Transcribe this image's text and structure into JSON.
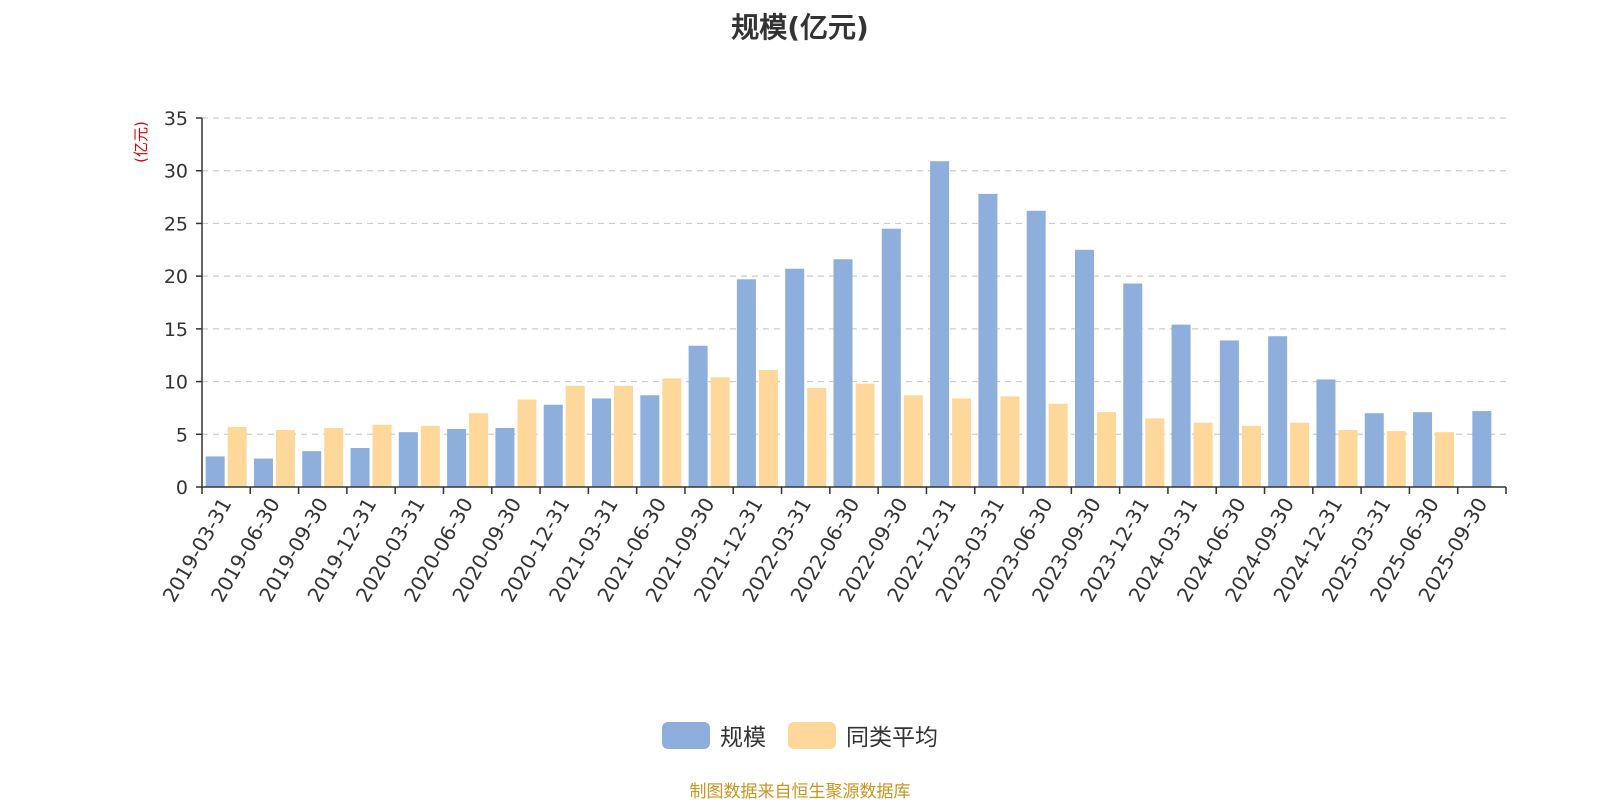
{
  "chart_data": {
    "type": "bar",
    "title": "规模(亿元)",
    "y_unit_label": "(亿元)",
    "ylim": [
      0,
      35
    ],
    "yticks": [
      0,
      5,
      10,
      15,
      20,
      25,
      30,
      35
    ],
    "grid": true,
    "legend_position": "bottom",
    "categories": [
      "2019-03-31",
      "2019-06-30",
      "2019-09-30",
      "2019-12-31",
      "2020-03-31",
      "2020-06-30",
      "2020-09-30",
      "2020-12-31",
      "2021-03-31",
      "2021-06-30",
      "2021-09-30",
      "2021-12-31",
      "2022-03-31",
      "2022-06-30",
      "2022-09-30",
      "2022-12-31",
      "2023-03-31",
      "2023-06-30",
      "2023-09-30",
      "2023-12-31",
      "2024-03-31",
      "2024-06-30",
      "2024-09-30",
      "2024-12-31",
      "2025-03-31",
      "2025-06-30",
      "2025-09-30"
    ],
    "series": [
      {
        "name": "规模",
        "color": "#8eaedc",
        "values": [
          2.9,
          2.7,
          3.4,
          3.7,
          5.2,
          5.5,
          5.6,
          7.8,
          8.4,
          8.7,
          13.4,
          19.7,
          20.7,
          21.6,
          24.5,
          30.9,
          27.8,
          26.2,
          22.5,
          19.3,
          15.4,
          13.9,
          14.3,
          10.2,
          7.0,
          7.1,
          7.2
        ]
      },
      {
        "name": "同类平均",
        "color": "#fdd89a",
        "values": [
          5.7,
          5.4,
          5.6,
          5.9,
          5.8,
          7.0,
          8.3,
          9.6,
          9.6,
          10.3,
          10.4,
          11.1,
          9.4,
          9.8,
          8.7,
          8.4,
          8.6,
          7.9,
          7.1,
          6.5,
          6.1,
          5.8,
          6.1,
          5.4,
          5.3,
          5.2,
          null
        ]
      }
    ]
  },
  "legend": {
    "items": [
      {
        "label": "规模",
        "color": "#8eaedc"
      },
      {
        "label": "同类平均",
        "color": "#fdd89a"
      }
    ]
  },
  "source_note": {
    "text": "制图数据来自恒生聚源数据库",
    "color": "#c8961e"
  },
  "colors": {
    "axis": "#333333",
    "grid": "#cccccc",
    "y_unit": "#e00000"
  }
}
